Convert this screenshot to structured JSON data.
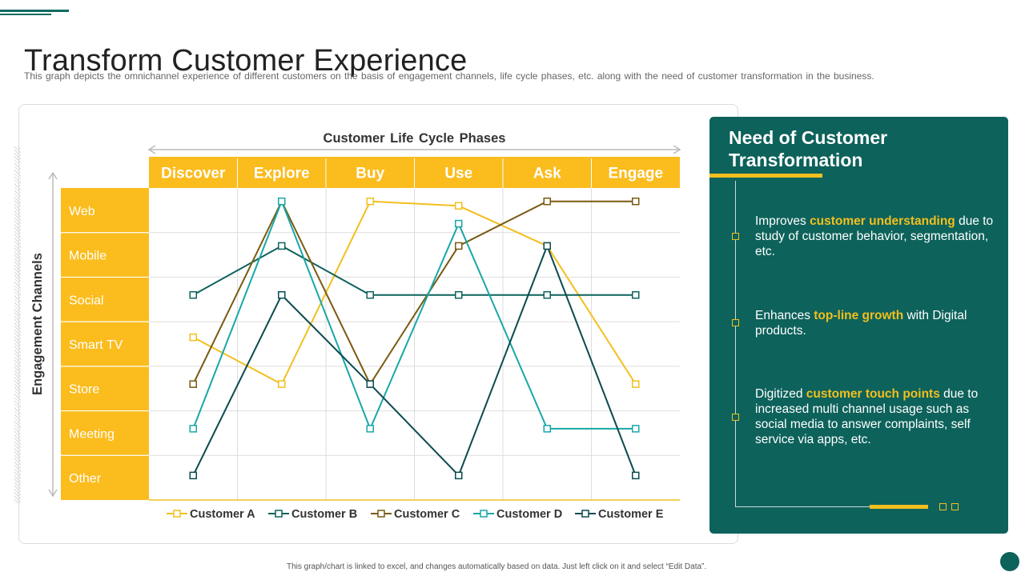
{
  "page": {
    "title": "Transform Customer Experience",
    "subtitle": "This graph depicts the omnichannel experience of different customers on the basis of engagement channels, life cycle phases, etc. along with the need of customer transformation in the business.",
    "footer": "This graph/chart is linked to excel, and changes automatically based on data. Just left click on it and select “Edit Data”."
  },
  "chart_data": {
    "type": "line",
    "xlabel": "Customer Life Cycle Phases",
    "ylabel": "Engagement Channels",
    "categories": [
      "Discover",
      "Explore",
      "Buy",
      "Use",
      "Ask",
      "Engage"
    ],
    "channels": [
      "Web",
      "Mobile",
      "Social",
      "Smart TV",
      "Store",
      "Meeting",
      "Other"
    ],
    "ylim": [
      0,
      7
    ],
    "legend_position": "bottom",
    "series": [
      {
        "name": "Customer A",
        "color": "#f3bf1e",
        "values": [
          3.65,
          2.6,
          6.7,
          6.6,
          5.7,
          2.6
        ]
      },
      {
        "name": "Customer B",
        "color": "#0d625b",
        "values": [
          4.6,
          5.7,
          4.6,
          4.6,
          4.6,
          4.6
        ]
      },
      {
        "name": "Customer C",
        "color": "#7a5a10",
        "values": [
          2.6,
          6.7,
          2.6,
          5.7,
          6.7,
          6.7
        ]
      },
      {
        "name": "Customer D",
        "color": "#1aa7a7",
        "values": [
          1.6,
          6.7,
          1.6,
          6.2,
          1.6,
          1.6
        ]
      },
      {
        "name": "Customer E",
        "color": "#0a4a4f",
        "values": [
          0.55,
          4.6,
          2.6,
          0.55,
          5.7,
          0.55
        ]
      }
    ]
  },
  "panel": {
    "title": "Need of Customer Transformation",
    "items": [
      {
        "pre": "Improves ",
        "highlight": "customer understanding",
        "post": " due to study of customer behavior, segmentation, etc."
      },
      {
        "pre": "Enhances ",
        "highlight": "top-line growth",
        "post": " with Digital products."
      },
      {
        "pre": "Digitized ",
        "highlight": "customer touch points",
        "post": " due to increased multi channel usage such as social media to answer complaints, self service via apps, etc."
      }
    ]
  },
  "colors": {
    "accent": "#f3bf1e",
    "panel_bg": "#0d625b",
    "header_bg": "#fbbc1d"
  }
}
